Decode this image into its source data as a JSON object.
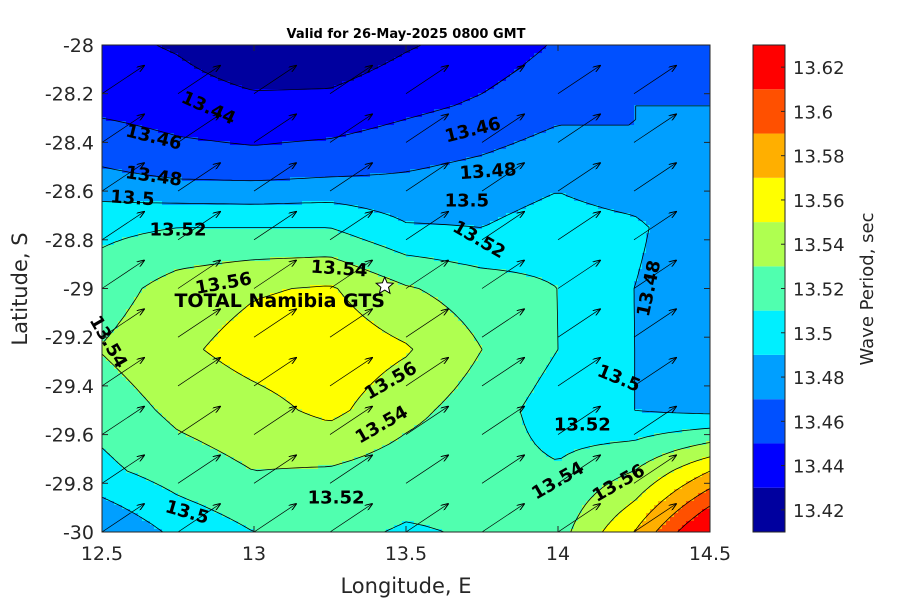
{
  "chart_data": {
    "type": "contour",
    "title": "Valid for 26-May-2025 0800 GMT",
    "xlabel": "Longitude, E",
    "ylabel": "Latitude, S",
    "xlim": [
      12.5,
      14.5
    ],
    "ylim": [
      -30,
      -28
    ],
    "x_ticks": [
      "12.5",
      "13",
      "13.5",
      "14",
      "14.5"
    ],
    "y_ticks": [
      "-28",
      "-28.2",
      "-28.4",
      "-28.6",
      "-28.8",
      "-29",
      "-29.2",
      "-29.4",
      "-29.6",
      "-29.8",
      "-30"
    ],
    "colorbar": {
      "label": "Wave Period, sec",
      "range": [
        13.42,
        13.64
      ],
      "ticks": [
        "13.42",
        "13.44",
        "13.46",
        "13.48",
        "13.5",
        "13.52",
        "13.54",
        "13.56",
        "13.58",
        "13.6",
        "13.62"
      ],
      "colors": [
        "#00009f",
        "#0000ff",
        "#0050ff",
        "#009fff",
        "#00efff",
        "#50ffaf",
        "#afff50",
        "#ffff00",
        "#ffaf00",
        "#ff5000",
        "#ff0000"
      ]
    },
    "grid": "0.25 degree",
    "x_grid": [
      12.5,
      12.75,
      13.0,
      13.25,
      13.5,
      13.75,
      14.0,
      14.25,
      14.5
    ],
    "y_grid": [
      -28.0,
      -28.25,
      -28.5,
      -28.75,
      -29.0,
      -29.25,
      -29.5,
      -29.75,
      -30.0
    ],
    "wave_period": [
      [
        13.445,
        13.438,
        13.425,
        13.425,
        13.438,
        13.448,
        13.462,
        13.47,
        13.47
      ],
      [
        13.455,
        13.45,
        13.445,
        13.446,
        13.455,
        13.463,
        13.474,
        13.48,
        13.48
      ],
      [
        13.48,
        13.47,
        13.468,
        13.472,
        13.478,
        13.484,
        13.493,
        13.48,
        13.48
      ],
      [
        13.515,
        13.52,
        13.52,
        13.52,
        13.502,
        13.5,
        13.51,
        13.505,
        13.48
      ],
      [
        13.53,
        13.549,
        13.558,
        13.562,
        13.542,
        13.53,
        13.52,
        13.5,
        13.48
      ],
      [
        13.541,
        13.556,
        13.568,
        13.573,
        13.562,
        13.54,
        13.52,
        13.5,
        13.49
      ],
      [
        13.528,
        13.545,
        13.553,
        13.565,
        13.546,
        13.53,
        13.51,
        13.5,
        13.495
      ],
      [
        13.515,
        13.53,
        13.54,
        13.538,
        13.53,
        13.526,
        13.522,
        13.54,
        13.58
      ],
      [
        13.48,
        13.505,
        13.52,
        13.525,
        13.518,
        13.522,
        13.532,
        13.58,
        13.65
      ]
    ],
    "contour_labels": [
      {
        "text": "13.44",
        "lon": 12.85,
        "lat": -28.26,
        "rot": 24
      },
      {
        "text": "13.46",
        "lon": 12.67,
        "lat": -28.38,
        "rot": 14
      },
      {
        "text": "13.46",
        "lon": 13.72,
        "lat": -28.35,
        "rot": -14
      },
      {
        "text": "13.48",
        "lon": 12.67,
        "lat": -28.54,
        "rot": 8
      },
      {
        "text": "13.48",
        "lon": 13.77,
        "lat": -28.52,
        "rot": -4
      },
      {
        "text": "13.5",
        "lon": 12.6,
        "lat": -28.63,
        "rot": 4
      },
      {
        "text": "13.5",
        "lon": 13.7,
        "lat": -28.64,
        "rot": 0
      },
      {
        "text": "13.52",
        "lon": 12.75,
        "lat": -28.76,
        "rot": 0
      },
      {
        "text": "13.52",
        "lon": 13.74,
        "lat": -28.8,
        "rot": 30
      },
      {
        "text": "13.54",
        "lon": 13.28,
        "lat": -28.92,
        "rot": 4
      },
      {
        "text": "13.56",
        "lon": 12.9,
        "lat": -28.98,
        "rot": -10
      },
      {
        "text": "13.54",
        "lon": 12.52,
        "lat": -29.22,
        "rot": 60
      },
      {
        "text": "13.48",
        "lon": 14.3,
        "lat": -29.0,
        "rot": -78
      },
      {
        "text": "13.56",
        "lon": 13.45,
        "lat": -29.38,
        "rot": -30
      },
      {
        "text": "13.54",
        "lon": 13.42,
        "lat": -29.56,
        "rot": -30
      },
      {
        "text": "13.5",
        "lon": 14.2,
        "lat": -29.37,
        "rot": 22
      },
      {
        "text": "13.52",
        "lon": 14.08,
        "lat": -29.56,
        "rot": 0
      },
      {
        "text": "13.54",
        "lon": 14.0,
        "lat": -29.79,
        "rot": -30
      },
      {
        "text": "13.56",
        "lon": 14.2,
        "lat": -29.8,
        "rot": -30
      },
      {
        "text": "13.52",
        "lon": 13.27,
        "lat": -29.86,
        "rot": 0
      },
      {
        "text": "13.5",
        "lon": 12.78,
        "lat": -29.92,
        "rot": 16
      }
    ],
    "wave_direction_vectors": {
      "lon": [
        12.5,
        12.75,
        13.0,
        13.25,
        13.5,
        13.75,
        14.0,
        14.25
      ],
      "lat": [
        -28.2,
        -28.4,
        -28.6,
        -28.8,
        -29.0,
        -29.2,
        -29.4,
        -29.6,
        -29.8,
        -30.0
      ],
      "direction": "toward north-east"
    },
    "station": {
      "name": "TOTAL Namibia GTS",
      "lon": 13.43,
      "lat": -28.99
    }
  }
}
